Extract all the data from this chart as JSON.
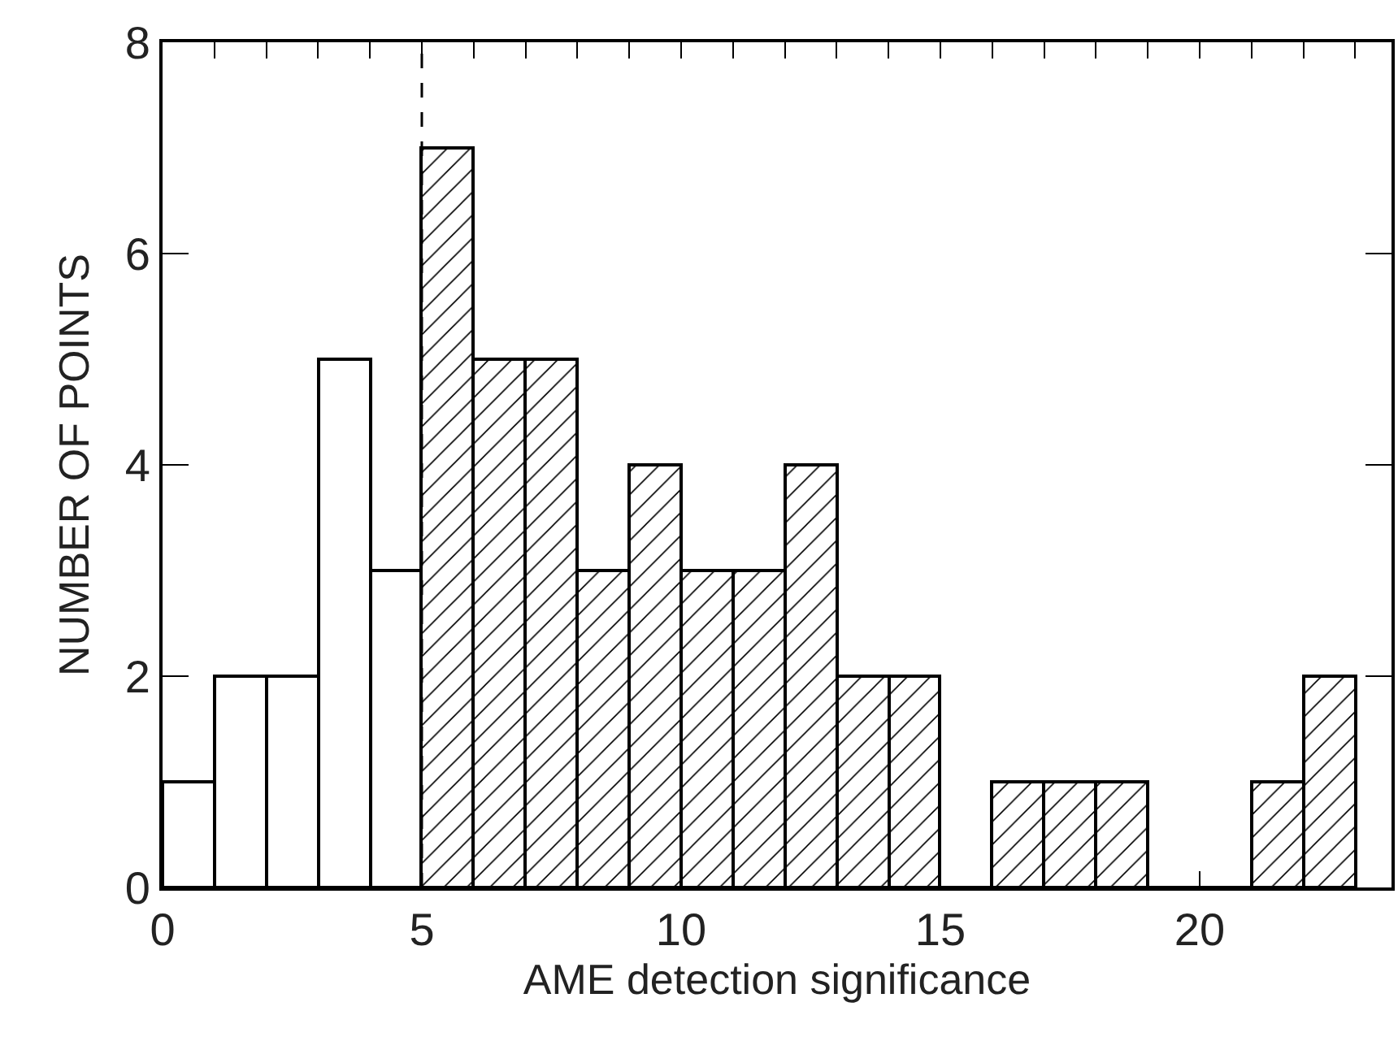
{
  "chart_data": {
    "type": "histogram",
    "xlabel": "AME detection significance",
    "ylabel": "NUMBER OF POINTS",
    "bins": [
      0,
      1,
      2,
      3,
      4,
      5,
      6,
      7,
      8,
      9,
      10,
      11,
      12,
      13,
      14,
      15,
      16,
      17,
      18,
      19,
      20,
      21,
      22,
      23
    ],
    "values": [
      1,
      2,
      2,
      5,
      3,
      7,
      5,
      5,
      3,
      4,
      3,
      3,
      4,
      2,
      2,
      0,
      1,
      1,
      1,
      0,
      0,
      1,
      2
    ],
    "color": "#000000",
    "xlim": [
      0,
      23.7
    ],
    "xticks": [
      0,
      {
        "value": 1,
        "label": null
      },
      {
        "value": 2,
        "label": null
      },
      {
        "value": 3,
        "label": null
      },
      {
        "value": 4,
        "label": null
      },
      5,
      {
        "value": 6,
        "label": null
      },
      {
        "value": 7,
        "label": null
      },
      {
        "value": 8,
        "label": null
      },
      {
        "value": 9,
        "label": null
      },
      10,
      {
        "value": 11,
        "label": null
      },
      {
        "value": 12,
        "label": null
      },
      {
        "value": 13,
        "label": null
      },
      {
        "value": 14,
        "label": null
      },
      15,
      {
        "value": 16,
        "label": null
      },
      {
        "value": 17,
        "label": null
      },
      {
        "value": 18,
        "label": null
      },
      {
        "value": 19,
        "label": null
      },
      20,
      {
        "value": 21,
        "label": null
      },
      {
        "value": 22,
        "label": null
      },
      {
        "value": 23,
        "label": null
      }
    ],
    "ylim": [
      0,
      8
    ],
    "yticks": [
      0,
      2,
      4,
      6,
      8
    ],
    "ref_lines": [
      {
        "axis": "x",
        "value": 5,
        "line_style": "dashed"
      }
    ]
  }
}
